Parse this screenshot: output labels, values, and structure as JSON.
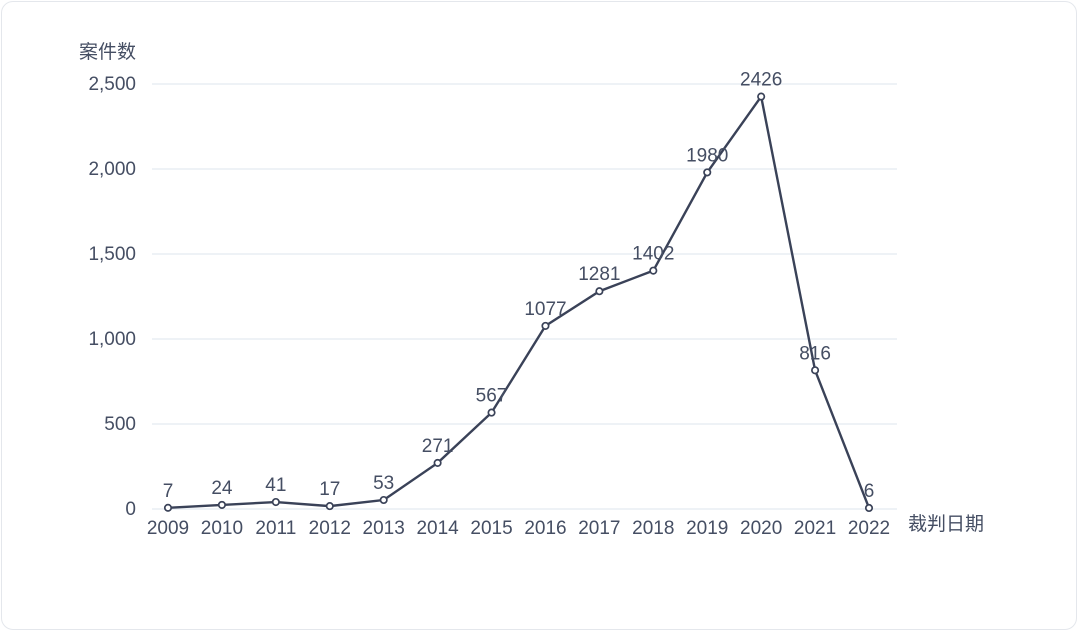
{
  "chart_data": {
    "type": "line",
    "title": "案件数",
    "ylabel": "案件数",
    "xlabel": "裁判日期",
    "categories": [
      "2009",
      "2010",
      "2011",
      "2012",
      "2013",
      "2014",
      "2015",
      "2016",
      "2017",
      "2018",
      "2019",
      "2020",
      "2021",
      "2022"
    ],
    "series": [
      {
        "name": "案件数",
        "values": [
          7,
          24,
          41,
          17,
          53,
          271,
          567,
          1077,
          1281,
          1402,
          1980,
          2426,
          816,
          6
        ],
        "point_labels": [
          "7",
          "24",
          "41",
          "17",
          "53",
          "271",
          "567",
          "1077",
          "1281",
          "1402",
          "1980",
          "2426",
          "816",
          "6"
        ]
      }
    ],
    "ylim": [
      0,
      2500
    ],
    "yticks": [
      {
        "value": 0,
        "label": "0"
      },
      {
        "value": 500,
        "label": "500"
      },
      {
        "value": 1000,
        "label": "1,000"
      },
      {
        "value": 1500,
        "label": "1,500"
      },
      {
        "value": 2000,
        "label": "2,000"
      },
      {
        "value": 2500,
        "label": "2,500"
      }
    ],
    "grid": true,
    "legend_position": "none",
    "colors": {
      "line": "#3a4258",
      "marker_stroke": "#3a4258",
      "marker_fill": "#ffffff",
      "grid": "#e9eef4",
      "text": "#454e63",
      "card_border": "#e4e7ec",
      "background": "#ffffff"
    }
  }
}
